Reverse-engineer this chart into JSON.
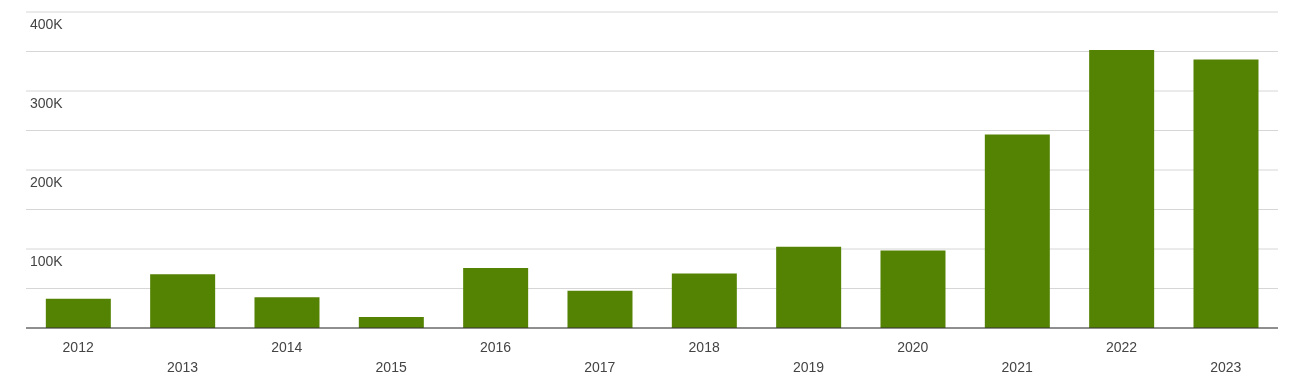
{
  "chart_data": {
    "type": "bar",
    "categories": [
      "2012",
      "2013",
      "2014",
      "2015",
      "2016",
      "2017",
      "2018",
      "2019",
      "2020",
      "2021",
      "2022",
      "2023"
    ],
    "values": [
      37000,
      68000,
      39000,
      14000,
      76000,
      47000,
      69000,
      103000,
      98000,
      245000,
      352000,
      340000
    ],
    "color": "#548203",
    "ylim": [
      0,
      400000
    ],
    "yticks": [
      {
        "value": 0,
        "label": null
      },
      {
        "value": 50000,
        "label": null
      },
      {
        "value": 100000,
        "label": "100K"
      },
      {
        "value": 150000,
        "label": null
      },
      {
        "value": 200000,
        "label": "200K"
      },
      {
        "value": 250000,
        "label": null
      },
      {
        "value": 300000,
        "label": "300K"
      },
      {
        "value": 350000,
        "label": null
      },
      {
        "value": 400000,
        "label": "400K"
      }
    ],
    "grid": "y"
  }
}
